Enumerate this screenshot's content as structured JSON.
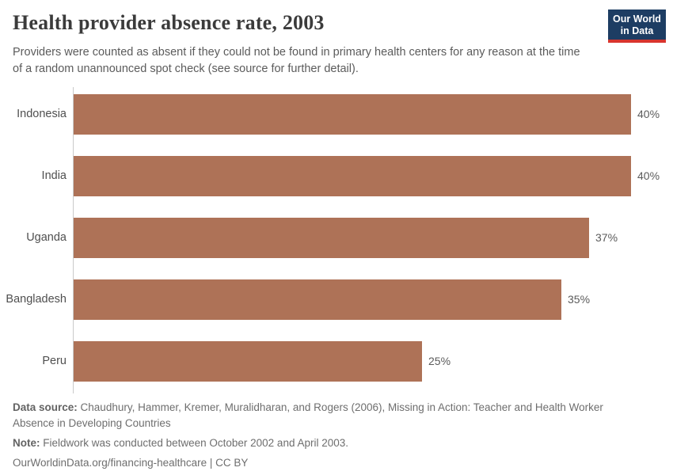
{
  "header": {
    "title": "Health provider absence rate, 2003",
    "subtitle": "Providers were counted as absent if they could not be found in primary health centers for any reason at the time of a random unannounced spot check (see source for further detail).",
    "logo": {
      "line1": "Our World",
      "line2": "in Data"
    }
  },
  "chart_data": {
    "type": "bar",
    "orientation": "horizontal",
    "title": "Health provider absence rate, 2003",
    "categories": [
      "Indonesia",
      "India",
      "Uganda",
      "Bangladesh",
      "Peru"
    ],
    "values": [
      40,
      40,
      37,
      35,
      25
    ],
    "value_labels": [
      "40%",
      "40%",
      "37%",
      "35%",
      "25%"
    ],
    "unit": "%",
    "xlim": [
      0,
      40
    ],
    "grid": false,
    "legend": "none",
    "bar_color": "#ae7257"
  },
  "colors": {
    "accent_bar": "#ae7257",
    "logo_navy": "#1d3d63",
    "logo_red": "#d8352e",
    "axis_line": "#c9c9c9"
  },
  "footer": {
    "data_source_label": "Data source:",
    "data_source_text": "Chaudhury, Hammer, Kremer, Muralidharan, and Rogers (2006), Missing in Action: Teacher and Health Worker Absence in Developing Countries",
    "note_label": "Note:",
    "note_text": "Fieldwork was conducted between October 2002 and April 2003.",
    "citation": "OurWorldinData.org/financing-healthcare | CC BY"
  }
}
